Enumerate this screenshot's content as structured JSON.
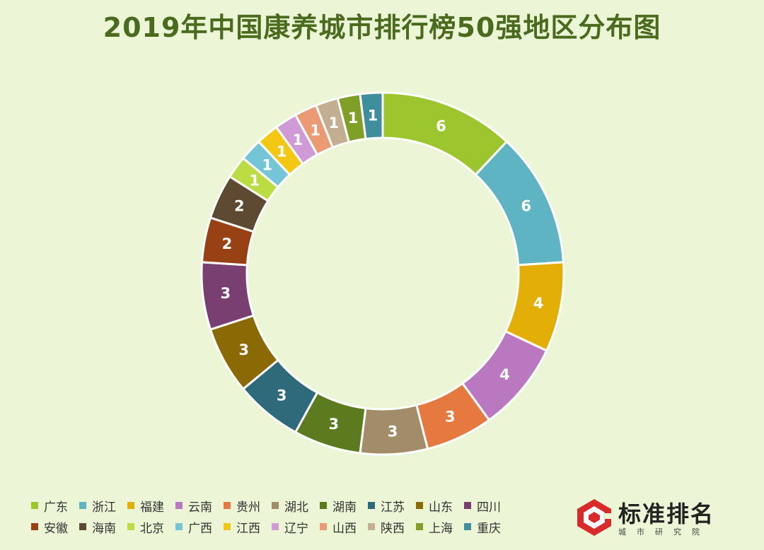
{
  "title": "2019年中国康养城市排行榜50强地区分布图",
  "chart_data": {
    "type": "donut",
    "title": "2019年中国康养城市排行榜50强地区分布图",
    "categories": [
      "广东",
      "浙江",
      "福建",
      "云南",
      "贵州",
      "湖北",
      "湖南",
      "江苏",
      "山东",
      "四川",
      "安徽",
      "海南",
      "北京",
      "广西",
      "江西",
      "辽宁",
      "山西",
      "陕西",
      "上海",
      "重庆"
    ],
    "values": [
      6,
      6,
      4,
      4,
      3,
      3,
      3,
      3,
      3,
      3,
      2,
      2,
      1,
      1,
      1,
      1,
      1,
      1,
      1,
      1
    ],
    "colors": [
      "#9dc62e",
      "#5fb4c4",
      "#e3ae06",
      "#b978bf",
      "#e6793f",
      "#a38c69",
      "#5c7a1e",
      "#2e6a7a",
      "#8b6a06",
      "#783f70",
      "#984114",
      "#5e4a32",
      "#bcdc44",
      "#74c6d7",
      "#f5c715",
      "#ce9bd6",
      "#ec9a74",
      "#c3ae91",
      "#7f9f27",
      "#3f8e9c"
    ],
    "legend_position": "bottom-left"
  },
  "brand": {
    "name": "标准排名",
    "subtitle": "城市研究院"
  }
}
